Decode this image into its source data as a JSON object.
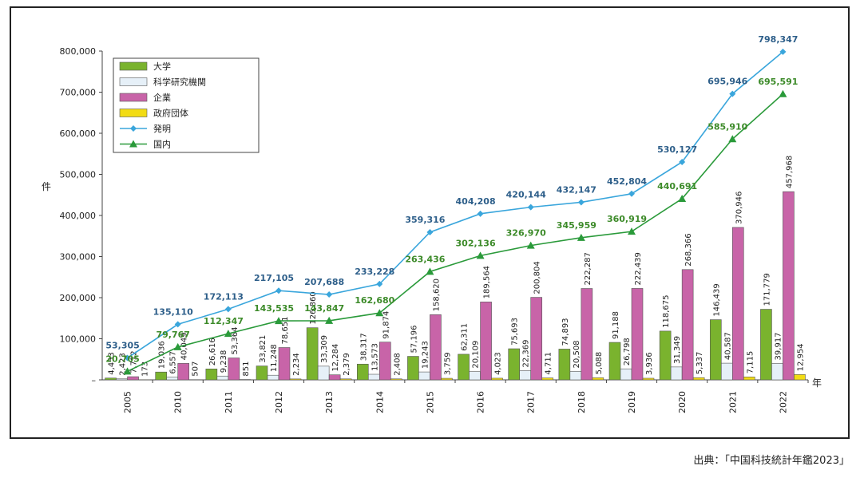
{
  "source": "出典：「中国科技統計年鑑2023」",
  "chart_data": {
    "type": "bar",
    "ylabel": "件",
    "xlabel": "年",
    "ylim": [
      0,
      800000
    ],
    "yticks": [
      "800,000",
      "700,000",
      "600,000",
      "500,000",
      "400,000",
      "300,000",
      "200,000",
      "100,000",
      "–"
    ],
    "categories": [
      "2005",
      "2010",
      "2011",
      "2012",
      "2013",
      "2014",
      "2015",
      "2016",
      "2017",
      "2018",
      "2019",
      "2020",
      "2021",
      "2022"
    ],
    "series": [
      {
        "name": "大学",
        "kind": "bar",
        "color": "#7ab32e",
        "values": [
          4453,
          19036,
          26616,
          33821,
          126860,
          38317,
          57196,
          62311,
          75693,
          74893,
          91188,
          118675,
          146439,
          171779
        ],
        "labels": [
          "4,453",
          "19,036",
          "26,616",
          "33,821",
          "126,860",
          "38,317",
          "57,196",
          "62,311",
          "75,693",
          "74,893",
          "91,188",
          "118,675",
          "146,439",
          "171,779"
        ]
      },
      {
        "name": "科学研究機関",
        "kind": "bar",
        "color": "#e6f0f8",
        "values": [
          2423,
          6557,
          9238,
          11248,
          33309,
          13573,
          19243,
          20109,
          22369,
          20508,
          26798,
          31349,
          40587,
          39917
        ],
        "labels": [
          "2,423",
          "6,557",
          "9,238",
          "11,248",
          "33,309",
          "13,573",
          "19,243",
          "20,109",
          "22,369",
          "20,508",
          "26,798",
          "31,349",
          "40,587",
          "39,917"
        ]
      },
      {
        "name": "企業",
        "kind": "bar",
        "color": "#c864a8",
        "values": [
          7712,
          40049,
          53364,
          78651,
          12284,
          91874,
          158620,
          189564,
          200804,
          222287,
          222439,
          268366,
          370946,
          457968
        ],
        "labels": [
          "7,712",
          "40,049",
          "53,364",
          "78,651",
          "12,284",
          "91,874",
          "158,620",
          "189,564",
          "200,804",
          "222,287",
          "222,439",
          "268,366",
          "370,946",
          "457,968"
        ]
      },
      {
        "name": "政府団体",
        "kind": "bar",
        "color": "#f2dc14",
        "values": [
          173,
          507,
          851,
          2234,
          2379,
          2408,
          3759,
          4023,
          4711,
          5088,
          3936,
          5337,
          7115,
          12954
        ],
        "labels": [
          "173",
          "507",
          "851",
          "2,234",
          "2,379",
          "2,408",
          "3,759",
          "4,023",
          "4,711",
          "5,088",
          "3,936",
          "5,337",
          "7,115",
          "12,954"
        ]
      },
      {
        "name": "発明",
        "kind": "line",
        "color": "#3aa6dc",
        "marker": "diamond",
        "values": [
          53305,
          135110,
          172113,
          217105,
          207688,
          233228,
          359316,
          404208,
          420144,
          432147,
          452804,
          530127,
          695946,
          798347
        ],
        "labels": [
          "53,305",
          "135,110",
          "172,113",
          "217,105",
          "207,688",
          "233,228",
          "359,316",
          "404,208",
          "420,144",
          "432,147",
          "452,804",
          "530,127",
          "695,946",
          "798,347"
        ]
      },
      {
        "name": "国内",
        "kind": "line",
        "color": "#2a9a3a",
        "marker": "triangle",
        "values": [
          20705,
          79767,
          112347,
          143535,
          143847,
          162680,
          263436,
          302136,
          326970,
          345959,
          360919,
          440691,
          585910,
          695591
        ],
        "labels": [
          "20,705",
          "79,767",
          "112,347",
          "143,535",
          "143,847",
          "162,680",
          "263,436",
          "302,136",
          "326,970",
          "345,959",
          "360,919",
          "440,691",
          "585,910",
          "695,591"
        ]
      }
    ],
    "legend_position": "top-left",
    "grid": false
  }
}
